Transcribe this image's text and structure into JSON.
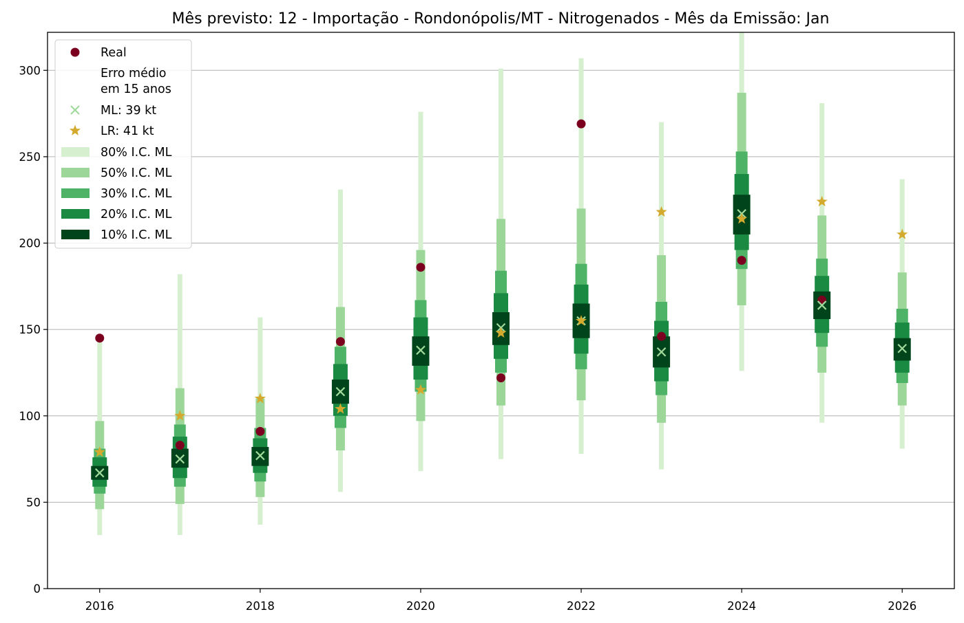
{
  "chart_data": {
    "type": "errorbar-interval",
    "title": "Mês previsto: 12 - Importação - Rondonópolis/MT - Nitrogenados - Mês da Emissão: Jan",
    "xlabel": "",
    "ylabel": "",
    "xlim": [
      2015.35,
      2026.65
    ],
    "ylim": [
      0,
      322
    ],
    "xticks": [
      2016,
      2018,
      2020,
      2022,
      2024,
      2026
    ],
    "yticks": [
      0,
      50,
      100,
      150,
      200,
      250,
      300
    ],
    "grid": "horizontal",
    "legend_position": "top-left",
    "colors": {
      "real": "#7b0020",
      "ml": "#a1d99b",
      "lr": "#d4aa2e",
      "ci80": "#d5efcf",
      "ci50": "#9dd699",
      "ci30": "#4fb367",
      "ci20": "#1a8a43",
      "ci10": "#00441b"
    },
    "legend": [
      {
        "key": "real",
        "label": "Real"
      },
      {
        "key": "erro",
        "label": "Erro médio",
        "label2": "em 15 anos"
      },
      {
        "key": "ml",
        "label": "ML: 39 kt"
      },
      {
        "key": "lr",
        "label": "LR: 41 kt"
      },
      {
        "key": "ci80",
        "label": "80% I.C. ML"
      },
      {
        "key": "ci50",
        "label": "50% I.C. ML"
      },
      {
        "key": "ci30",
        "label": "30% I.C. ML"
      },
      {
        "key": "ci20",
        "label": "20% I.C. ML"
      },
      {
        "key": "ci10",
        "label": "10% I.C. ML"
      }
    ],
    "points": [
      {
        "year": 2016,
        "real": 145,
        "ml": 67,
        "lr": 79,
        "ci80": [
          31,
          143
        ],
        "ci50": [
          46,
          97
        ],
        "ci30": [
          55,
          81
        ],
        "ci20": [
          59,
          76
        ],
        "ci10": [
          63,
          71
        ]
      },
      {
        "year": 2017,
        "real": 83,
        "ml": 75,
        "lr": 100,
        "ci80": [
          31,
          182
        ],
        "ci50": [
          49,
          116
        ],
        "ci30": [
          59,
          95
        ],
        "ci20": [
          64,
          88
        ],
        "ci10": [
          70,
          81
        ]
      },
      {
        "year": 2018,
        "real": 91,
        "ml": 77,
        "lr": 110,
        "ci80": [
          37,
          157
        ],
        "ci50": [
          53,
          110
        ],
        "ci30": [
          62,
          93
        ],
        "ci20": [
          67,
          87
        ],
        "ci10": [
          71,
          82
        ]
      },
      {
        "year": 2019,
        "real": 143,
        "ml": 114,
        "lr": 104,
        "ci80": [
          56,
          231
        ],
        "ci50": [
          80,
          163
        ],
        "ci30": [
          93,
          140
        ],
        "ci20": [
          100,
          130
        ],
        "ci10": [
          107,
          121
        ]
      },
      {
        "year": 2020,
        "real": 186,
        "ml": 138,
        "lr": 115,
        "ci80": [
          68,
          276
        ],
        "ci50": [
          97,
          196
        ],
        "ci30": [
          114,
          167
        ],
        "ci20": [
          121,
          157
        ],
        "ci10": [
          129,
          146
        ]
      },
      {
        "year": 2021,
        "real": 122,
        "ml": 151,
        "lr": 148,
        "ci80": [
          75,
          301
        ],
        "ci50": [
          106,
          214
        ],
        "ci30": [
          125,
          184
        ],
        "ci20": [
          133,
          171
        ],
        "ci10": [
          141,
          160
        ]
      },
      {
        "year": 2022,
        "real": 269,
        "ml": 155,
        "lr": 155,
        "ci80": [
          78,
          307
        ],
        "ci50": [
          109,
          220
        ],
        "ci30": [
          127,
          188
        ],
        "ci20": [
          136,
          176
        ],
        "ci10": [
          145,
          165
        ]
      },
      {
        "year": 2023,
        "real": 146,
        "ml": 137,
        "lr": 218,
        "ci80": [
          69,
          270
        ],
        "ci50": [
          96,
          193
        ],
        "ci30": [
          112,
          166
        ],
        "ci20": [
          120,
          155
        ],
        "ci10": [
          128,
          146
        ]
      },
      {
        "year": 2024,
        "real": 190,
        "ml": 217,
        "lr": 214,
        "ci80": [
          126,
          322
        ],
        "ci50": [
          164,
          287
        ],
        "ci30": [
          185,
          253
        ],
        "ci20": [
          196,
          240
        ],
        "ci10": [
          205,
          228
        ]
      },
      {
        "year": 2025,
        "real": 167,
        "ml": 164,
        "lr": 224,
        "ci80": [
          96,
          281
        ],
        "ci50": [
          125,
          216
        ],
        "ci30": [
          140,
          191
        ],
        "ci20": [
          148,
          181
        ],
        "ci10": [
          156,
          172
        ]
      },
      {
        "year": 2026,
        "real": null,
        "ml": 139,
        "lr": 205,
        "ci80": [
          81,
          237
        ],
        "ci50": [
          106,
          183
        ],
        "ci30": [
          119,
          162
        ],
        "ci20": [
          125,
          154
        ],
        "ci10": [
          132,
          145
        ]
      }
    ]
  }
}
